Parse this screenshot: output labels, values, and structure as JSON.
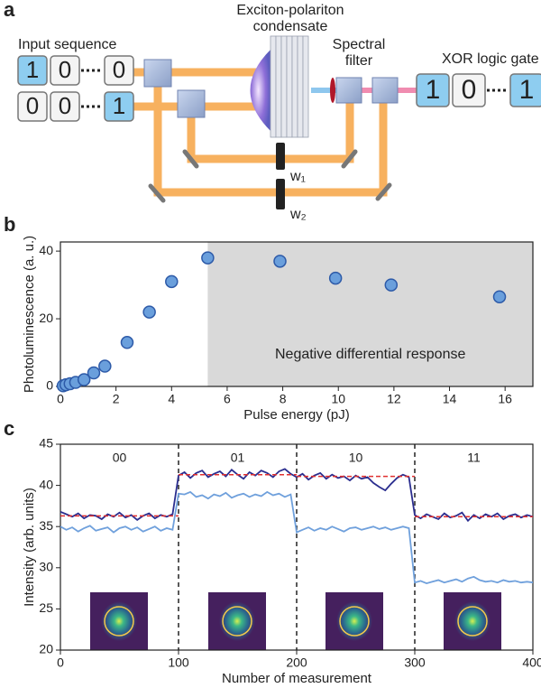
{
  "panel_labels": [
    "a",
    "b",
    "c"
  ],
  "diagram": {
    "condensate_label": [
      "Exciton-polariton",
      "condensate"
    ],
    "input_label": "Input sequence",
    "filter_label": [
      "Spectral",
      "filter"
    ],
    "output_label": "XOR logic gate",
    "inputs": [
      {
        "labels": [
          "1",
          "0",
          "0"
        ],
        "colors": [
          "#8ecdf0",
          "#f4f4f4",
          "#f4f4f4"
        ]
      },
      {
        "labels": [
          "0",
          "0",
          "1"
        ],
        "colors": [
          "#f4f4f4",
          "#f4f4f4",
          "#8ecdf0"
        ]
      }
    ],
    "output": {
      "labels": [
        "1",
        "0",
        "1"
      ],
      "colors": [
        "#8ecdf0",
        "#f4f4f4",
        "#8ecdf0"
      ]
    },
    "weights": [
      "w₁",
      "w₂"
    ]
  },
  "chart_data": [
    {
      "type": "scatter",
      "x": [
        0.1,
        0.2,
        0.35,
        0.55,
        0.85,
        1.2,
        1.6,
        2.4,
        3.2,
        4.0,
        5.3,
        7.9,
        9.9,
        11.9,
        15.8
      ],
      "values": [
        0.2,
        0.5,
        0.8,
        1.2,
        2,
        4,
        6,
        13,
        22,
        31,
        38,
        37,
        32,
        30,
        26.5
      ],
      "color": "#6a9fdc",
      "xlim": [
        0,
        17
      ],
      "xticks": [
        0,
        2,
        4,
        6,
        8,
        10,
        12,
        14,
        16
      ],
      "ylim": [
        0,
        42.7
      ],
      "yticks": [
        0,
        20,
        40
      ],
      "x_label": "Pulse energy (pJ)",
      "y_label": "Photoluminescence (a. u.)",
      "shade_from": 5.3,
      "shade_color": "#d9d9d9",
      "annotation": "Negative differential response"
    },
    {
      "type": "line",
      "x": [
        0,
        5,
        10,
        15,
        20,
        25,
        30,
        35,
        40,
        45,
        50,
        55,
        60,
        65,
        70,
        75,
        80,
        85,
        90,
        95,
        100,
        105,
        110,
        115,
        120,
        125,
        130,
        135,
        140,
        145,
        150,
        155,
        160,
        165,
        170,
        175,
        180,
        185,
        190,
        195,
        200,
        205,
        210,
        215,
        220,
        225,
        230,
        235,
        240,
        245,
        250,
        255,
        260,
        265,
        270,
        275,
        280,
        285,
        290,
        295,
        300,
        305,
        310,
        315,
        320,
        325,
        330,
        335,
        340,
        345,
        350,
        355,
        360,
        365,
        370,
        375,
        380,
        385,
        390,
        395,
        400
      ],
      "series": [
        {
          "color": "#2b2e8f",
          "values": [
            36.8,
            36.5,
            36.2,
            36.6,
            36.0,
            36.4,
            36.3,
            35.9,
            36.5,
            36.2,
            36.7,
            36.1,
            36.4,
            35.8,
            36.3,
            36.6,
            36.0,
            36.4,
            36.2,
            36.5,
            41.2,
            41.6,
            40.9,
            41.5,
            41.8,
            41.0,
            41.4,
            41.7,
            41.1,
            41.9,
            41.3,
            40.8,
            41.6,
            41.2,
            41.8,
            41.5,
            41.0,
            41.7,
            42.0,
            41.4,
            41.0,
            41.4,
            40.7,
            41.2,
            41.5,
            40.8,
            41.3,
            40.9,
            41.1,
            40.6,
            41.2,
            40.8,
            41.0,
            40.3,
            39.8,
            39.4,
            40.2,
            40.9,
            41.3,
            41.0,
            36.4,
            36.0,
            36.5,
            36.2,
            35.9,
            36.6,
            36.1,
            36.3,
            36.7,
            35.7,
            36.4,
            36.0,
            36.5,
            36.2,
            36.6,
            35.9,
            36.3,
            36.5,
            36.1,
            36.4,
            36.2
          ]
        },
        {
          "color": "#6fa0dc",
          "values": [
            35.0,
            34.6,
            34.9,
            34.4,
            34.8,
            35.1,
            34.5,
            34.7,
            34.9,
            34.3,
            34.8,
            35.0,
            34.6,
            34.9,
            34.4,
            34.7,
            35.0,
            34.5,
            34.8,
            34.6,
            39.0,
            38.9,
            39.2,
            38.6,
            38.8,
            38.4,
            38.9,
            38.7,
            39.1,
            38.5,
            38.8,
            39.0,
            38.6,
            38.9,
            38.7,
            39.2,
            38.8,
            39.0,
            38.6,
            38.9,
            34.3,
            34.6,
            34.9,
            34.5,
            34.8,
            34.6,
            35.0,
            34.7,
            34.4,
            34.8,
            34.9,
            34.6,
            34.8,
            35.0,
            34.7,
            34.9,
            34.6,
            34.8,
            35.0,
            34.8,
            28.2,
            28.4,
            28.1,
            28.3,
            28.5,
            28.2,
            28.4,
            28.6,
            28.3,
            28.7,
            28.9,
            28.5,
            28.3,
            28.4,
            28.2,
            28.5,
            28.3,
            28.4,
            28.2,
            28.3,
            28.2
          ]
        }
      ],
      "references": [
        {
          "from": 0,
          "to": 100,
          "value": 36.3
        },
        {
          "from": 100,
          "to": 200,
          "value": 41.3
        },
        {
          "from": 200,
          "to": 300,
          "value": 41.1
        },
        {
          "from": 300,
          "to": 400,
          "value": 36.2
        }
      ],
      "reference_color": "#e03030",
      "dividers": [
        100,
        200,
        300
      ],
      "section_labels": [
        "00",
        "01",
        "10",
        "11"
      ],
      "xlim": [
        0,
        400
      ],
      "xticks": [
        0,
        100,
        200,
        300,
        400
      ],
      "ylim": [
        20,
        45
      ],
      "yticks": [
        20,
        25,
        30,
        35,
        40,
        45
      ],
      "x_label": "Number of measurement",
      "y_label": "Intensity (arb. units)"
    }
  ]
}
